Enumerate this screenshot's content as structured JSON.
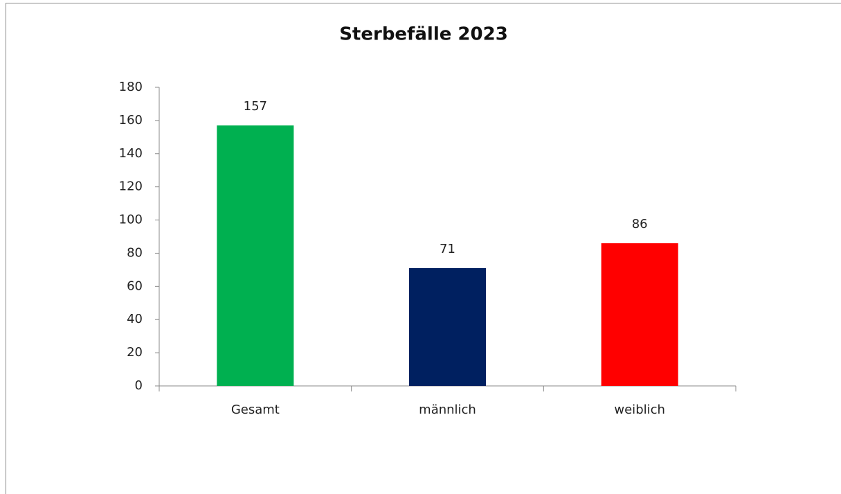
{
  "chart_data": {
    "type": "bar",
    "title": "Sterbefälle 2023",
    "categories": [
      "Gesamt",
      "männlich",
      "weiblich"
    ],
    "values": [
      157,
      71,
      86
    ],
    "colors": [
      "#00b050",
      "#002060",
      "#ff0000"
    ],
    "ylim": [
      0,
      180
    ],
    "yticks": [
      0,
      20,
      40,
      60,
      80,
      100,
      120,
      140,
      160,
      180
    ],
    "grid": false
  }
}
